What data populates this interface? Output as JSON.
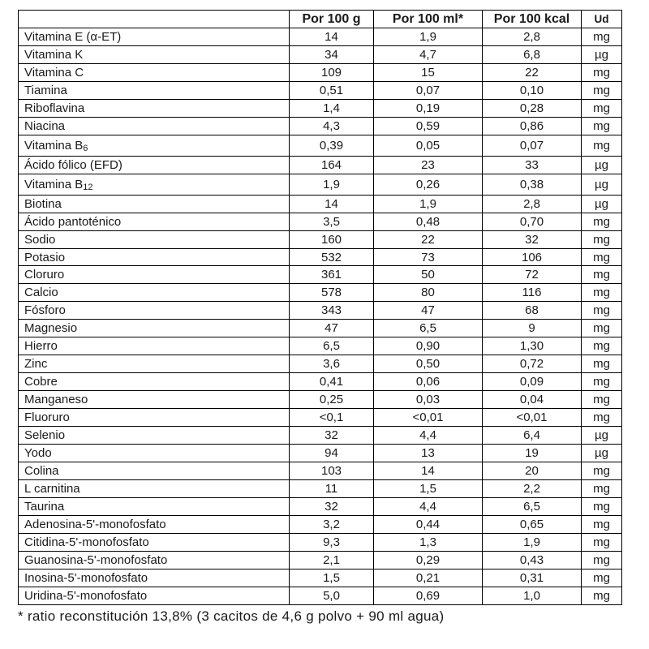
{
  "table": {
    "headers": [
      "",
      "Por 100 g",
      "Por 100 ml*",
      "Por 100 kcal",
      "Ud"
    ],
    "rows": [
      {
        "label": "Vitamina E (α-ET)",
        "g": "14",
        "ml": "1,9",
        "kcal": "2,8",
        "unit": "mg"
      },
      {
        "label": "Vitamina K",
        "g": "34",
        "ml": "4,7",
        "kcal": "6,8",
        "unit": "µg"
      },
      {
        "label": "Vitamina C",
        "g": "109",
        "ml": "15",
        "kcal": "22",
        "unit": "mg"
      },
      {
        "label": "Tiamina",
        "g": "0,51",
        "ml": "0,07",
        "kcal": "0,10",
        "unit": "mg"
      },
      {
        "label": "Riboflavina",
        "g": "1,4",
        "ml": "0,19",
        "kcal": "0,28",
        "unit": "mg"
      },
      {
        "label": "Niacina",
        "g": "4,3",
        "ml": "0,59",
        "kcal": "0,86",
        "unit": "mg"
      },
      {
        "label": "Vitamina B",
        "label_sub": "6",
        "g": "0,39",
        "ml": "0,05",
        "kcal": "0,07",
        "unit": "mg"
      },
      {
        "label": "Ácido fólico (EFD)",
        "g": "164",
        "ml": "23",
        "kcal": "33",
        "unit": "µg"
      },
      {
        "label": "Vitamina B",
        "label_sub": "12",
        "g": "1,9",
        "ml": "0,26",
        "kcal": "0,38",
        "unit": "µg"
      },
      {
        "label": "Biotina",
        "g": "14",
        "ml": "1,9",
        "kcal": "2,8",
        "unit": "µg"
      },
      {
        "label": "Ácido pantoténico",
        "g": "3,5",
        "ml": "0,48",
        "kcal": "0,70",
        "unit": "mg"
      },
      {
        "label": "Sodio",
        "g": "160",
        "ml": "22",
        "kcal": "32",
        "unit": "mg"
      },
      {
        "label": "Potasio",
        "g": "532",
        "ml": "73",
        "kcal": "106",
        "unit": "mg"
      },
      {
        "label": "Cloruro",
        "g": "361",
        "ml": "50",
        "kcal": "72",
        "unit": "mg"
      },
      {
        "label": "Calcio",
        "g": "578",
        "ml": "80",
        "kcal": "116",
        "unit": "mg"
      },
      {
        "label": "Fósforo",
        "g": "343",
        "ml": "47",
        "kcal": "68",
        "unit": "mg"
      },
      {
        "label": "Magnesio",
        "g": "47",
        "ml": "6,5",
        "kcal": "9",
        "unit": "mg"
      },
      {
        "label": "Hierro",
        "g": "6,5",
        "ml": "0,90",
        "kcal": "1,30",
        "unit": "mg"
      },
      {
        "label": "Zinc",
        "g": "3,6",
        "ml": "0,50",
        "kcal": "0,72",
        "unit": "mg"
      },
      {
        "label": "Cobre",
        "g": "0,41",
        "ml": "0,06",
        "kcal": "0,09",
        "unit": "mg"
      },
      {
        "label": "Manganeso",
        "g": "0,25",
        "ml": "0,03",
        "kcal": "0,04",
        "unit": "mg"
      },
      {
        "label": "Fluoruro",
        "g": "<0,1",
        "ml": "<0,01",
        "kcal": "<0,01",
        "unit": "mg"
      },
      {
        "label": "Selenio",
        "g": "32",
        "ml": "4,4",
        "kcal": "6,4",
        "unit": "µg"
      },
      {
        "label": "Yodo",
        "g": "94",
        "ml": "13",
        "kcal": "19",
        "unit": "µg"
      },
      {
        "label": "Colina",
        "g": "103",
        "ml": "14",
        "kcal": "20",
        "unit": "mg"
      },
      {
        "label": "L carnitina",
        "g": "11",
        "ml": "1,5",
        "kcal": "2,2",
        "unit": "mg"
      },
      {
        "label": "Taurina",
        "g": "32",
        "ml": "4,4",
        "kcal": "6,5",
        "unit": "mg"
      },
      {
        "label": "Adenosina-5'-monofosfato",
        "g": "3,2",
        "ml": "0,44",
        "kcal": "0,65",
        "unit": "mg"
      },
      {
        "label": "Citidina-5'-monofosfato",
        "g": "9,3",
        "ml": "1,3",
        "kcal": "1,9",
        "unit": "mg"
      },
      {
        "label": "Guanosina-5'-monofosfato",
        "g": "2,1",
        "ml": "0,29",
        "kcal": "0,43",
        "unit": "mg"
      },
      {
        "label": "Inosina-5'-monofosfato",
        "g": "1,5",
        "ml": "0,21",
        "kcal": "0,31",
        "unit": "mg"
      },
      {
        "label": "Uridina-5'-monofosfato",
        "g": "5,0",
        "ml": "0,69",
        "kcal": "1,0",
        "unit": "mg"
      }
    ]
  },
  "footnote": "* ratio reconstitución 13,8% (3 cacitos de 4,6 g polvo + 90 ml agua)"
}
